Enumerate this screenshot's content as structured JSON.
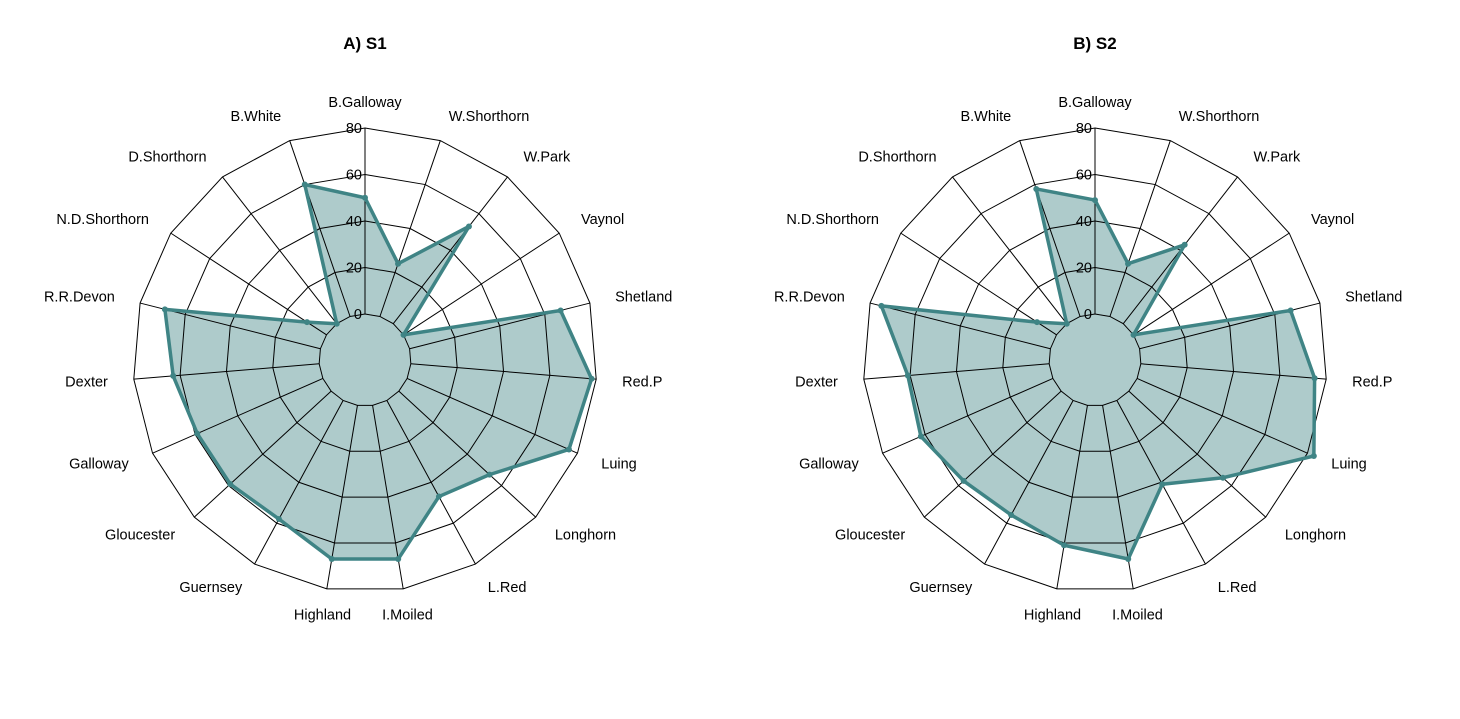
{
  "chart_data": [
    {
      "type": "radar",
      "title": "A) S1",
      "categories": [
        "B.Galloway",
        "W.Shorthorn",
        "W.Park",
        "Vaynol",
        "Shetland",
        "Red.P",
        "Luing",
        "Longhorn",
        "L.Red",
        "I.Moiled",
        "Highland",
        "Guernsey",
        "Gloucester",
        "Galloway",
        "Dexter",
        "R.R.Devon",
        "N.D.Shorthorn",
        "D.Shorthorn",
        "B.White"
      ],
      "values": [
        50,
        24,
        53,
        0,
        67,
        78,
        76,
        53,
        47,
        67,
        67,
        58,
        59,
        59,
        63,
        69,
        10,
        0,
        60
      ],
      "r_ticks": [
        0,
        20,
        40,
        60,
        80
      ],
      "rlim": [
        0,
        80
      ],
      "colors": {
        "line": "#3f8485",
        "fill": "#aecbcb"
      }
    },
    {
      "type": "radar",
      "title": "B) S2",
      "categories": [
        "B.Galloway",
        "W.Shorthorn",
        "W.Park",
        "Vaynol",
        "Shetland",
        "Red.P",
        "Luing",
        "Longhorn",
        "L.Red",
        "I.Moiled",
        "Highland",
        "Guernsey",
        "Gloucester",
        "Galloway",
        "Dexter",
        "R.R.Devon",
        "N.D.Shorthorn",
        "D.Shorthorn",
        "B.White"
      ],
      "values": [
        49,
        24,
        43,
        0,
        67,
        75,
        83,
        55,
        41,
        67,
        61,
        56,
        57,
        62,
        61,
        75,
        10,
        0,
        58
      ],
      "r_ticks": [
        0,
        20,
        40,
        60,
        80
      ],
      "rlim": [
        0,
        80
      ],
      "colors": {
        "line": "#3f8485",
        "fill": "#aecbcb"
      }
    }
  ]
}
